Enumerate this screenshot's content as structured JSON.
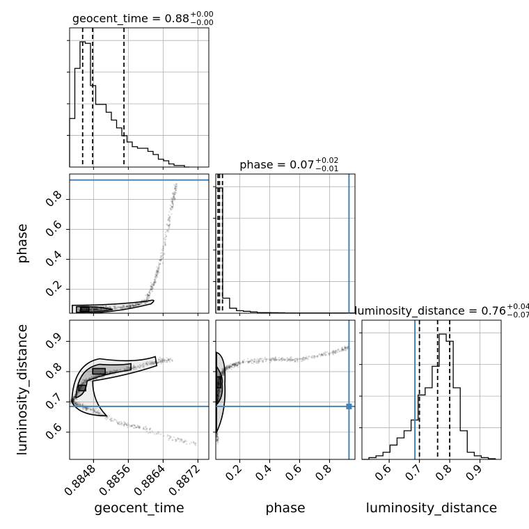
{
  "chart_data": {
    "type": "corner",
    "parameters": [
      "geocent_time",
      "phase",
      "luminosity_distance"
    ],
    "axis_labels": [
      "geocent_time",
      "phase",
      "luminosity_distance"
    ],
    "ranges": {
      "geocent_time": [
        0.88425,
        0.88745
      ],
      "phase": [
        0.04,
        0.97
      ],
      "luminosity_distance": [
        0.51,
        0.97
      ]
    },
    "ticks": {
      "geocent_time": [
        0.8848,
        0.8856,
        0.8864,
        0.8872
      ],
      "phase": [
        0.2,
        0.4,
        0.6,
        0.8
      ],
      "luminosity_distance": [
        0.6,
        0.7,
        0.8,
        0.9
      ]
    },
    "tick_labels": {
      "geocent_time": [
        "0.8848",
        "0.8856",
        "0.8864",
        "0.8872"
      ],
      "phase": [
        "0.2",
        "0.4",
        "0.6",
        "0.8"
      ],
      "luminosity_distance": [
        "0.6",
        "0.7",
        "0.8",
        "0.9"
      ]
    },
    "truths": {
      "phase": 0.93,
      "luminosity_distance": 0.685
    },
    "truth_color": "#4682b4",
    "grid": true,
    "titles": [
      {
        "param": "geocent_time",
        "text": "geocent_time = 0.88",
        "plus": "+0.00",
        "minus": "−0.00"
      },
      {
        "param": "phase",
        "text": "phase = 0.07",
        "plus": "+0.02",
        "minus": "−0.01"
      },
      {
        "param": "luminosity_distance",
        "text": "luminosity_distance = 0.76",
        "plus": "+0.04",
        "minus": "−0.07"
      }
    ],
    "histograms": {
      "geocent_time": {
        "bin_edges": [
          0.88425,
          0.88437,
          0.88449,
          0.88461,
          0.88473,
          0.88485,
          0.88497,
          0.88509,
          0.88521,
          0.88533,
          0.88545,
          0.88557,
          0.88569,
          0.88581,
          0.88593,
          0.88605,
          0.88617,
          0.88629,
          0.88641,
          0.88653,
          0.88665,
          0.88677,
          0.88689,
          0.88701
        ],
        "counts": [
          31,
          63,
          80,
          79,
          52,
          40,
          40,
          35,
          30,
          25,
          20,
          16,
          13,
          12,
          12,
          10,
          8,
          5,
          4,
          2,
          1,
          1,
          0
        ],
        "quantiles": [
          0.88455,
          0.88478,
          0.8855
        ]
      },
      "phase": {
        "bin_edges": [
          0.04,
          0.0862,
          0.1324,
          0.1786,
          0.2248,
          0.271,
          0.3172,
          0.3634,
          0.4096,
          0.4558,
          0.502,
          0.97
        ],
        "counts": [
          100,
          12,
          4,
          2,
          1.5,
          1,
          0.5,
          0.5,
          0.4,
          0.3,
          0.2
        ],
        "quantiles": [
          0.055,
          0.065,
          0.085
        ]
      },
      "luminosity_distance": {
        "bin_edges": [
          0.51,
          0.5332,
          0.5564,
          0.5796,
          0.6028,
          0.626,
          0.6492,
          0.6724,
          0.6956,
          0.7188,
          0.742,
          0.7652,
          0.7884,
          0.8116,
          0.8348,
          0.858,
          0.8812,
          0.9044,
          0.9276,
          0.9508
        ],
        "counts": [
          0,
          0.5,
          1,
          2,
          4,
          6,
          8,
          11,
          18,
          20,
          26,
          35,
          33,
          20,
          8,
          2,
          1,
          0.5,
          0.2
        ],
        "quantiles": [
          0.7,
          0.76,
          0.8
        ]
      }
    },
    "scatter_pairs": [
      {
        "x": "geocent_time",
        "y": "phase",
        "trend": [
          [
            0.8845,
            0.06
          ],
          [
            0.885,
            0.07
          ],
          [
            0.8856,
            0.08
          ],
          [
            0.886,
            0.12
          ],
          [
            0.8862,
            0.25
          ],
          [
            0.8864,
            0.45
          ],
          [
            0.8866,
            0.75
          ],
          [
            0.8867,
            0.9
          ]
        ],
        "contour_levels": 3
      },
      {
        "x": "geocent_time",
        "y": "luminosity_distance",
        "upper_branch": [
          [
            0.8843,
            0.7
          ],
          [
            0.8846,
            0.77
          ],
          [
            0.885,
            0.79
          ],
          [
            0.8856,
            0.81
          ],
          [
            0.8862,
            0.83
          ],
          [
            0.8866,
            0.84
          ]
        ],
        "lower_branch": [
          [
            0.8843,
            0.7
          ],
          [
            0.8848,
            0.67
          ],
          [
            0.8854,
            0.63
          ],
          [
            0.886,
            0.61
          ],
          [
            0.8866,
            0.58
          ],
          [
            0.8872,
            0.56
          ]
        ],
        "contour_levels": 3
      },
      {
        "x": "phase",
        "y": "luminosity_distance",
        "branch": [
          [
            0.05,
            0.7
          ],
          [
            0.06,
            0.77
          ],
          [
            0.1,
            0.81
          ],
          [
            0.2,
            0.83
          ],
          [
            0.4,
            0.84
          ],
          [
            0.6,
            0.84
          ],
          [
            0.8,
            0.86
          ],
          [
            0.93,
            0.88
          ]
        ],
        "lower_tail": [
          [
            0.04,
            0.6
          ],
          [
            0.05,
            0.57
          ]
        ],
        "contour_levels": 3
      }
    ]
  }
}
